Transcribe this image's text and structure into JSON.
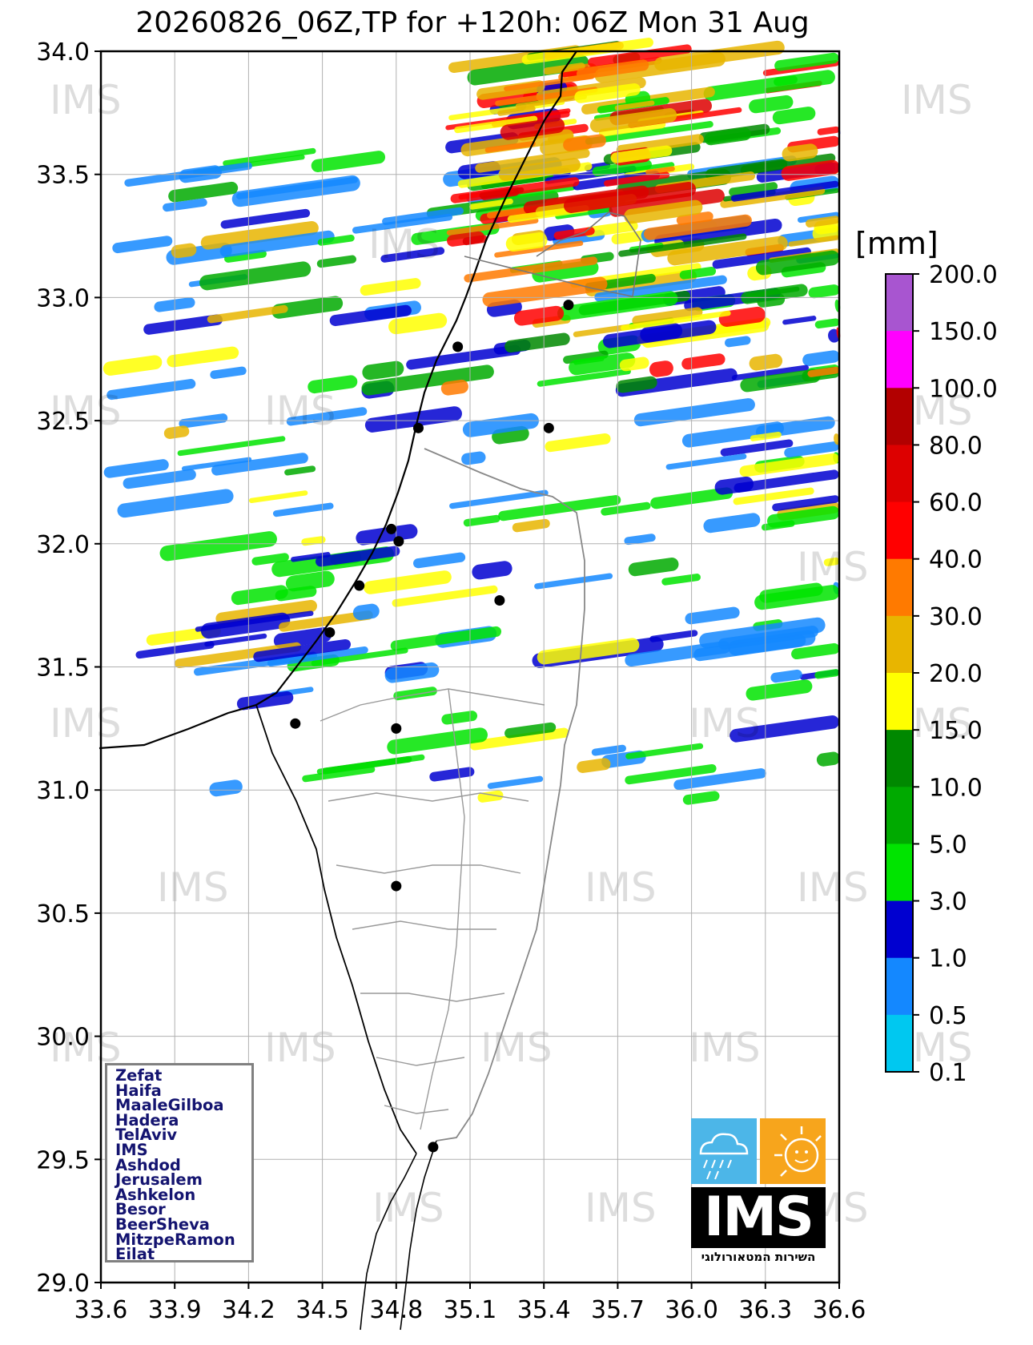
{
  "title": "20260826_06Z,TP for +120h: 06Z Mon 31 Aug",
  "map": {
    "x_ticks": [
      "33.6",
      "33.9",
      "34.2",
      "34.5",
      "34.8",
      "35.1",
      "35.4",
      "35.7",
      "36.0",
      "36.3",
      "36.6"
    ],
    "y_ticks": [
      "34.0",
      "33.5",
      "33.0",
      "32.5",
      "32.0",
      "31.5",
      "31.0",
      "30.5",
      "30.0",
      "29.5",
      "29.0"
    ],
    "lon_range": [
      33.6,
      36.6
    ],
    "lat_range": [
      29.0,
      34.0
    ],
    "watermark_text": "IMS"
  },
  "colorbar": {
    "unit": "[mm]",
    "labels": [
      "200.0",
      "150.0",
      "100.0",
      "80.0",
      "60.0",
      "40.0",
      "30.0",
      "20.0",
      "15.0",
      "10.0",
      "5.0",
      "3.0",
      "1.0",
      "0.5",
      "0.1"
    ],
    "colors": [
      "#a855d0",
      "#ff00ff",
      "#b20000",
      "#dd0000",
      "#ff0000",
      "#ff7a00",
      "#e8b500",
      "#ffff00",
      "#008800",
      "#00aa00",
      "#00e400",
      "#0000d0",
      "#1488ff",
      "#00c8f0"
    ]
  },
  "stations": {
    "names": [
      "Zefat",
      "Haifa",
      "MaaleGilboa",
      "Hadera",
      "TelAviv",
      "IMS",
      "Ashdod",
      "Jerusalem",
      "Ashkelon",
      "Besor",
      "BeerSheva",
      "MitzpeRamon",
      "Eilat"
    ],
    "points": [
      {
        "lon": 35.5,
        "lat": 32.97
      },
      {
        "lon": 35.05,
        "lat": 32.8
      },
      {
        "lon": 35.42,
        "lat": 32.47
      },
      {
        "lon": 34.89,
        "lat": 32.47
      },
      {
        "lon": 34.78,
        "lat": 32.06
      },
      {
        "lon": 34.81,
        "lat": 32.01
      },
      {
        "lon": 34.65,
        "lat": 31.83
      },
      {
        "lon": 35.22,
        "lat": 31.77
      },
      {
        "lon": 34.53,
        "lat": 31.64
      },
      {
        "lon": 34.39,
        "lat": 31.27
      },
      {
        "lon": 34.8,
        "lat": 31.25
      },
      {
        "lon": 34.8,
        "lat": 30.61
      },
      {
        "lon": 34.95,
        "lat": 29.55
      }
    ]
  },
  "logo": {
    "text": "IMS",
    "caption": "השירות המטאורולוגי"
  }
}
